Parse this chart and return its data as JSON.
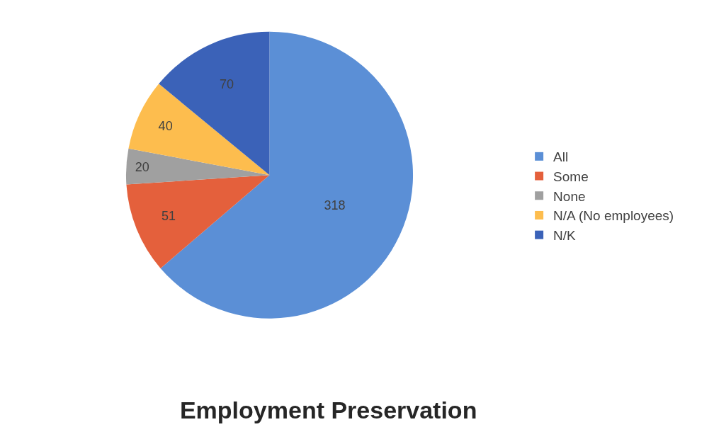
{
  "chart_data": {
    "type": "pie",
    "title": "Employment Preservation",
    "categories": [
      "All",
      "Some",
      "None",
      "N/A (No employees)",
      "N/K"
    ],
    "values": [
      318,
      51,
      20,
      40,
      70
    ],
    "colors": [
      "#5b8fd6",
      "#e4603c",
      "#a0a0a0",
      "#fdbd4e",
      "#3b62b8"
    ],
    "data_labels": true,
    "legend": "right"
  }
}
